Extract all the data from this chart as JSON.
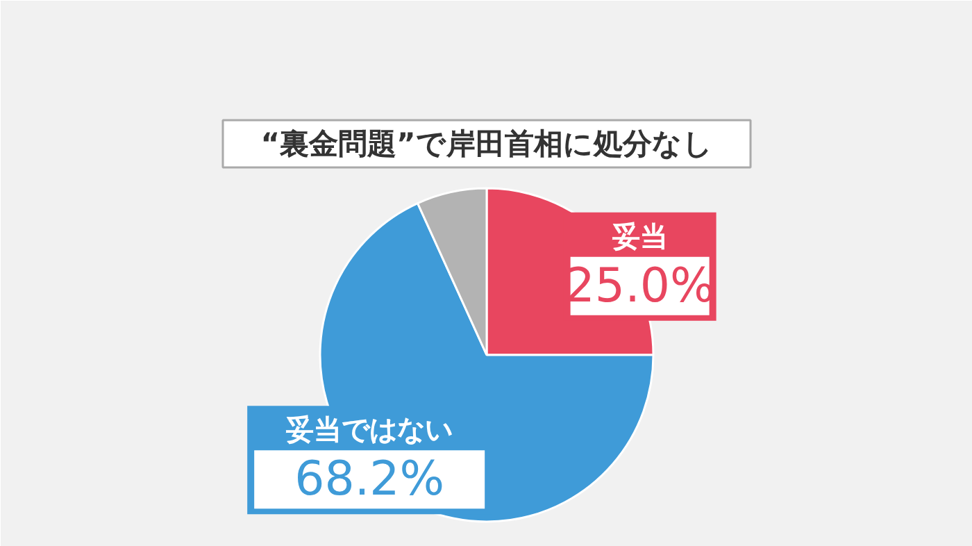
{
  "chart_data": {
    "type": "pie",
    "title": "“裏金問題”で岸田首相に処分なし",
    "categories": [
      "妥当",
      "妥当ではない",
      null
    ],
    "values": [
      25.0,
      68.2,
      6.8
    ],
    "colors": [
      "#e8465f",
      "#3f9bd8",
      "#b3b3b3"
    ],
    "value_labels": [
      "25.0%",
      "68.2%",
      null
    ]
  }
}
